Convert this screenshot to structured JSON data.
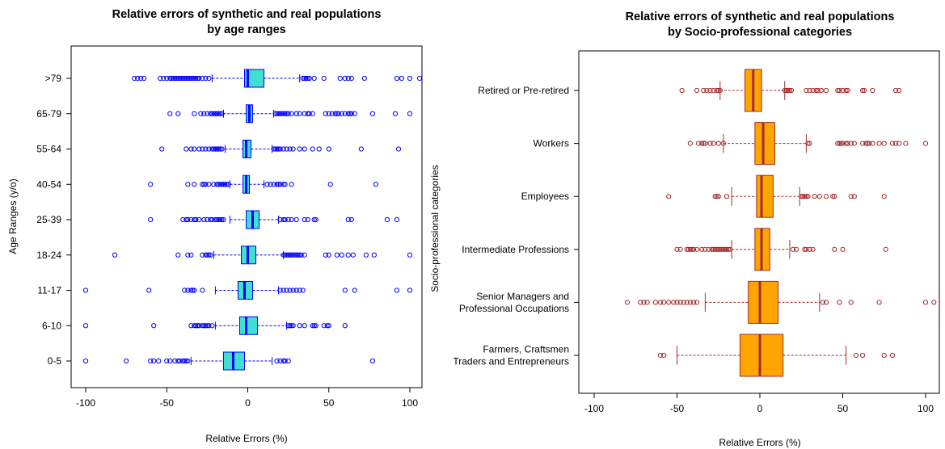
{
  "chart_data": [
    {
      "type": "boxplot",
      "orientation": "horizontal",
      "title_lines": [
        "Relative errors of synthetic and real populations",
        "by age ranges"
      ],
      "xlabel": "Relative Errors (%)",
      "ylabel": "Age Ranges (y/o)",
      "xlim": [
        -100,
        100
      ],
      "xticks": [
        -100,
        -50,
        0,
        50,
        100
      ],
      "box_color": "#40E0D0",
      "line_color": "#0000FF",
      "outlier_color": "#0000FF",
      "categories": [
        "0-5",
        "6-10",
        "11-17",
        "18-24",
        "25-39",
        "40-54",
        "55-64",
        "65-79",
        ">79"
      ],
      "boxes": [
        {
          "category": "0-5",
          "whisker_low": -35,
          "q1": -15,
          "median": -9,
          "q3": -2,
          "whisker_high": 15,
          "outliers": [
            -100,
            -75,
            -60,
            -58,
            -55,
            -50,
            -48,
            -45,
            -43,
            -42,
            -40,
            -39,
            -38,
            -37,
            18,
            20,
            22,
            23,
            25,
            77
          ]
        },
        {
          "category": "6-10",
          "whisker_low": -20,
          "q1": -5,
          "median": -1,
          "q3": 6,
          "whisker_high": 24,
          "outliers": [
            -100,
            -58,
            -35,
            -33,
            -32,
            -31,
            -30,
            -28,
            -27,
            -26,
            -25,
            -24,
            -22,
            25,
            26,
            27,
            28,
            32,
            35,
            40,
            41,
            42,
            47,
            49,
            50,
            60
          ]
        },
        {
          "category": "11-17",
          "whisker_low": -20,
          "q1": -6,
          "median": -2,
          "q3": 3,
          "whisker_high": 19,
          "outliers": [
            -100,
            -61,
            -39,
            -37,
            -35,
            -34,
            -33,
            -28,
            20,
            22,
            24,
            26,
            28,
            30,
            32,
            34,
            60,
            66,
            92,
            100
          ]
        },
        {
          "category": "18-24",
          "whisker_low": -21,
          "q1": -4,
          "median": 0,
          "q3": 5,
          "whisker_high": 22,
          "outliers": [
            -82,
            -43,
            -37,
            -35,
            -28,
            -26,
            -25,
            -24,
            -23,
            22,
            23,
            24,
            25,
            26,
            27,
            28,
            29,
            30,
            31,
            32,
            33,
            35,
            48,
            50,
            55,
            58,
            62,
            65,
            73,
            78,
            100
          ]
        },
        {
          "category": "25-39",
          "whisker_low": -11,
          "q1": -1,
          "median": 3,
          "q3": 7,
          "whisker_high": 19,
          "outliers": [
            -60,
            -40,
            -38,
            -37,
            -35,
            -33,
            -32,
            -30,
            -27,
            -25,
            -23,
            -22,
            -20,
            -19,
            -18,
            -17,
            -16,
            -15,
            20,
            22,
            23,
            25,
            27,
            30,
            35,
            37,
            41,
            42,
            62,
            64,
            86,
            92
          ]
        },
        {
          "category": "40-54",
          "whisker_low": -11,
          "q1": -3,
          "median": -1,
          "q3": 1,
          "whisker_high": 10,
          "outliers": [
            -60,
            -37,
            -33,
            -28,
            -27,
            -26,
            -24,
            -21,
            -19,
            -18,
            -17,
            -16,
            -15,
            -14,
            -13,
            -12,
            12,
            14,
            16,
            18,
            19,
            20,
            22,
            23,
            27,
            51,
            79
          ]
        },
        {
          "category": "55-64",
          "whisker_low": -14,
          "q1": -3,
          "median": -1,
          "q3": 2,
          "whisker_high": 15,
          "outliers": [
            -53,
            -38,
            -35,
            -33,
            -30,
            -28,
            -26,
            -24,
            -22,
            -21,
            -20,
            -19,
            -18,
            -17,
            -16,
            16,
            17,
            18,
            19,
            20,
            22,
            24,
            26,
            28,
            32,
            35,
            40,
            44,
            50,
            70,
            93
          ]
        },
        {
          "category": "65-79",
          "whisker_low": -15,
          "q1": -1,
          "median": 1,
          "q3": 3,
          "whisker_high": 16,
          "outliers": [
            -48,
            -43,
            -33,
            -29,
            -27,
            -25,
            -23,
            -22,
            -21,
            -20,
            -19,
            -18,
            -17,
            -16,
            17,
            18,
            19,
            20,
            21,
            22,
            23,
            24,
            25,
            27,
            30,
            32,
            35,
            37,
            38,
            40,
            48,
            50,
            52,
            54,
            55,
            56,
            58,
            60,
            62,
            63,
            64,
            66,
            77,
            91,
            100
          ]
        },
        {
          "category": ">79",
          "whisker_low": -22,
          "q1": -2,
          "median": 0,
          "q3": 10,
          "whisker_high": 32,
          "outliers": [
            -70,
            -68,
            -66,
            -64,
            -54,
            -52,
            -50,
            -48,
            -47,
            -46,
            -45,
            -44,
            -43,
            -42,
            -41,
            -40,
            -39,
            -38,
            -37,
            -36,
            -35,
            -34,
            -33,
            -32,
            -31,
            -30,
            -28,
            -26,
            -24,
            34,
            35,
            36,
            37,
            38,
            41,
            47,
            57,
            60,
            62,
            64,
            72,
            92,
            95,
            100,
            106
          ]
        }
      ]
    },
    {
      "type": "boxplot",
      "orientation": "horizontal",
      "title_lines": [
        "Relative errors of synthetic and real populations",
        "by Socio-professional categories"
      ],
      "xlabel": "Relative Errors (%)",
      "ylabel": "Socio-professional categories",
      "xlim": [
        -100,
        100
      ],
      "xticks": [
        -100,
        -50,
        0,
        50,
        100
      ],
      "box_color": "#FFA500",
      "line_color": "#A52A2A",
      "outlier_color": "#A52A2A",
      "categories": [
        [
          "Farmers, Craftsmen",
          "Traders and Entrepreneurs"
        ],
        [
          "Senior Managers and",
          "Professional Occupations"
        ],
        [
          "Intermediate Professions"
        ],
        [
          "Employees"
        ],
        [
          "Workers"
        ],
        [
          "Retired or Pre-retired"
        ]
      ],
      "boxes": [
        {
          "whisker_low": -50,
          "q1": -12,
          "median": 0,
          "q3": 14,
          "whisker_high": 52,
          "outliers": [
            -60,
            -58,
            58,
            62,
            75,
            80
          ]
        },
        {
          "whisker_low": -33,
          "q1": -7,
          "median": 0,
          "q3": 11,
          "whisker_high": 36,
          "outliers": [
            -80,
            -72,
            -70,
            -68,
            -63,
            -60,
            -58,
            -55,
            -52,
            -50,
            -48,
            -46,
            -44,
            -42,
            -40,
            -38,
            38,
            40,
            48,
            55,
            72,
            100,
            105
          ]
        },
        {
          "whisker_low": -17,
          "q1": -3,
          "median": 1,
          "q3": 6,
          "whisker_high": 18,
          "outliers": [
            -50,
            -48,
            -44,
            -43,
            -42,
            -41,
            -40,
            -38,
            -35,
            -33,
            -31,
            -29,
            -28,
            -27,
            -26,
            -25,
            -24,
            -23,
            -22,
            -21,
            -20,
            -19,
            -18,
            20,
            22,
            27,
            28,
            30,
            32,
            45,
            50,
            76
          ]
        },
        {
          "whisker_low": -17,
          "q1": -2,
          "median": 1,
          "q3": 8,
          "whisker_high": 24,
          "outliers": [
            -55,
            -27,
            -26,
            -25,
            -20,
            25,
            26,
            27,
            28,
            29,
            33,
            36,
            40,
            44,
            45,
            55,
            57,
            75
          ]
        },
        {
          "whisker_low": -22,
          "q1": -3,
          "median": 2,
          "q3": 9,
          "whisker_high": 28,
          "outliers": [
            -42,
            -37,
            -35,
            -34,
            -33,
            -30,
            -28,
            -25,
            -22,
            29,
            30,
            47,
            48,
            49,
            50,
            52,
            53,
            55,
            57,
            62,
            64,
            65,
            66,
            68,
            72,
            75,
            80,
            82,
            84,
            88,
            100
          ]
        },
        {
          "whisker_low": -24,
          "q1": -9,
          "median": -4,
          "q3": 1,
          "whisker_high": 15,
          "outliers": [
            -47,
            -38,
            -34,
            -32,
            -30,
            -28,
            -26,
            -25,
            -24,
            15,
            16,
            17,
            18,
            19,
            28,
            30,
            32,
            34,
            35,
            37,
            40,
            47,
            48,
            50,
            52,
            53,
            62,
            63,
            68,
            82,
            84
          ]
        }
      ]
    }
  ]
}
